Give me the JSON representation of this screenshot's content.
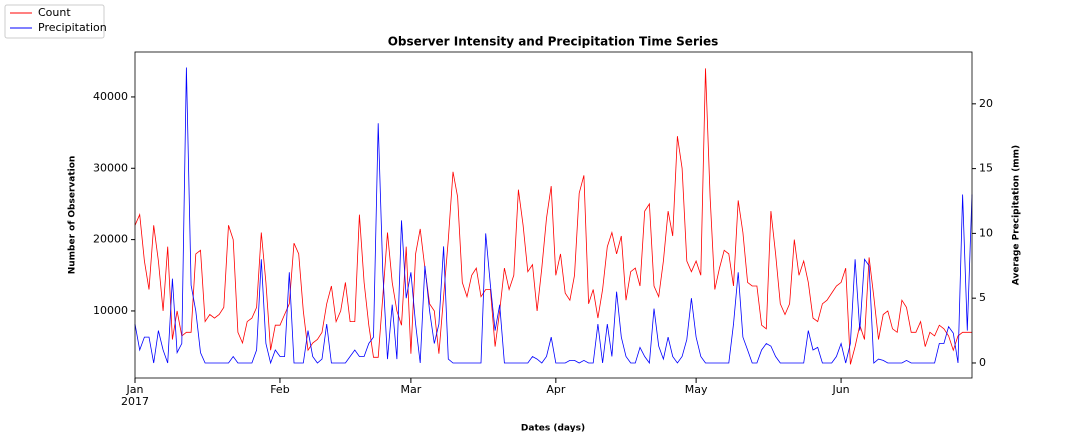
{
  "chart_data": {
    "type": "line",
    "title": "Observer Intensity and Precipitation Time Series",
    "xlabel": "Dates (days)",
    "ylabel": "Number of Observation",
    "y2label": "Average Precipitation (mm)",
    "x_year": "2017",
    "xlim": [
      0,
      179
    ],
    "xticks": [
      {
        "value": 0,
        "label": "Jan"
      },
      {
        "value": 31,
        "label": "Feb"
      },
      {
        "value": 59,
        "label": "Mar"
      },
      {
        "value": 90,
        "label": "Apr"
      },
      {
        "value": 120,
        "label": "May"
      },
      {
        "value": 151,
        "label": "Jun"
      }
    ],
    "ylim": [
      600,
      46300
    ],
    "yticks": [
      10000,
      20000,
      30000,
      40000
    ],
    "y2lim": [
      -1.16,
      24
    ],
    "y2ticks": [
      0,
      5,
      10,
      15,
      20
    ],
    "legend": "upper left",
    "series": [
      {
        "name": "Count",
        "color": "#ff0000",
        "values": [
          22000,
          23500,
          17000,
          13000,
          22000,
          17000,
          10000,
          19000,
          6000,
          10000,
          6500,
          7000,
          7000,
          18000,
          18500,
          8500,
          9500,
          9000,
          9500,
          10500,
          22000,
          20000,
          7000,
          5500,
          8500,
          9000,
          10500,
          21000,
          14000,
          4500,
          8000,
          8000,
          9500,
          11000,
          19500,
          18000,
          10000,
          4500,
          5500,
          6000,
          7000,
          11000,
          13500,
          8500,
          10000,
          14000,
          8500,
          8500,
          23500,
          14000,
          8000,
          3500,
          3500,
          12000,
          21000,
          14000,
          10000,
          8000,
          19000,
          4000,
          18000,
          21500,
          16000,
          11000,
          10000,
          4000,
          12000,
          20000,
          29500,
          26000,
          14000,
          12000,
          15000,
          16000,
          12000,
          13000,
          13000,
          5000,
          10000,
          16000,
          13000,
          15000,
          27000,
          22000,
          15500,
          16500,
          10000,
          16000,
          23000,
          27500,
          15000,
          18000,
          12500,
          11500,
          15000,
          26500,
          29000,
          11000,
          13000,
          9000,
          13000,
          19000,
          21000,
          18000,
          20500,
          11500,
          15500,
          16000,
          13500,
          24000,
          25000,
          13500,
          12000,
          17000,
          24000,
          20500,
          34500,
          30000,
          17000,
          15500,
          17000,
          15000,
          44000,
          26000,
          13000,
          16000,
          18500,
          18000,
          13500,
          25500,
          21000,
          14000,
          13500,
          13500,
          8000,
          7500,
          24000,
          18000,
          11000,
          9500,
          11000,
          20000,
          15000,
          17000,
          14000,
          9000,
          8500,
          11000,
          11500,
          12500,
          13500,
          14000,
          16000,
          2500,
          5000,
          8000,
          6000,
          17500,
          12000,
          6000,
          9500,
          10000,
          7500,
          7000,
          11500,
          10500,
          7000,
          7000,
          8500,
          5000,
          7000,
          6500,
          8000,
          7500,
          6500,
          4500,
          6500,
          7000,
          7000,
          7000
        ]
      },
      {
        "name": "Precipitation",
        "color": "#0000ff",
        "axis": "y2",
        "values": [
          3,
          1,
          2,
          2,
          0,
          2.5,
          1,
          0,
          6.5,
          0.8,
          1.5,
          22.8,
          6,
          4,
          0.8,
          0,
          0,
          0,
          0,
          0,
          0,
          0.5,
          0,
          0,
          0,
          0,
          1,
          8,
          1.5,
          0,
          1,
          0.5,
          0.5,
          7,
          0,
          0,
          0,
          2.5,
          0.5,
          0,
          0.3,
          3,
          0,
          0,
          0,
          0,
          0.5,
          1,
          0.5,
          0.5,
          1.5,
          2,
          18.5,
          7,
          0.3,
          4.5,
          0.3,
          11,
          5,
          7,
          3,
          0,
          7.5,
          4,
          1.5,
          3,
          9,
          0.3,
          0,
          0,
          0,
          0,
          0,
          0,
          0,
          10,
          6,
          2.5,
          4.5,
          0,
          0,
          0,
          0,
          0,
          0,
          0.5,
          0.3,
          0,
          0.5,
          2,
          0,
          0,
          0,
          0.2,
          0.2,
          0,
          0.2,
          0,
          0,
          3,
          0,
          3,
          0.5,
          5.5,
          2,
          0.5,
          0,
          0,
          1.2,
          0.5,
          0,
          4.2,
          1.3,
          0.3,
          2,
          0.5,
          0,
          0.5,
          1.8,
          5,
          2,
          0.5,
          0,
          0,
          0,
          0,
          0,
          0,
          3,
          7,
          2,
          1,
          0,
          0,
          1,
          1.5,
          1.3,
          0.5,
          0,
          0,
          0,
          0,
          0,
          0,
          2.5,
          1,
          1.2,
          0,
          0,
          0,
          0.5,
          1.5,
          0,
          1.5,
          8,
          2.5,
          8,
          7.5,
          0,
          0.3,
          0.2,
          0,
          0,
          0,
          0,
          0.2,
          0,
          0,
          0,
          0,
          0,
          0,
          1.5,
          1.5,
          2.8,
          2.3,
          0,
          13,
          2.5,
          13
        ]
      }
    ]
  }
}
